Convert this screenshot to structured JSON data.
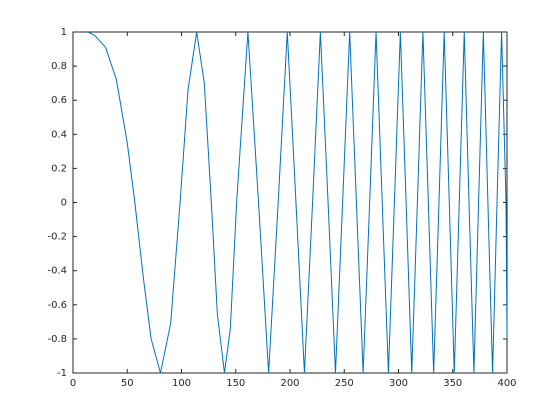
{
  "chart_data": {
    "type": "line",
    "x": [
      14,
      20,
      30,
      40,
      50,
      57,
      65,
      72,
      80.6,
      90,
      98.7,
      106,
      114,
      121,
      127.5,
      133,
      139.6,
      145,
      150.8,
      161.2,
      171,
      180.3,
      189.1,
      197.5,
      205.5,
      213.3,
      220.8,
      228,
      235.1,
      241.9,
      248.5,
      255,
      261.2,
      267.4,
      273.4,
      279.3,
      285,
      290.7,
      296.2,
      301.7,
      307,
      312.2,
      317.4,
      322.5,
      327.5,
      332.4,
      337.3,
      342.1,
      346.8,
      351.4,
      356,
      360.6,
      365,
      369.5,
      373.8,
      378.2,
      382.4,
      386.7,
      390.8,
      395,
      399.1,
      400
    ],
    "values": [
      1,
      0.98,
      0.91,
      0.72,
      0.35,
      0,
      -0.45,
      -0.8,
      -1,
      -0.71,
      0,
      0.66,
      1,
      0.7,
      0,
      -0.65,
      -1,
      -0.74,
      0,
      1,
      0,
      -1,
      0,
      1,
      0,
      -1,
      0,
      1,
      0,
      -1,
      0,
      1,
      0,
      -1,
      0,
      1,
      0,
      -1,
      0,
      1,
      0,
      -1,
      0,
      1,
      0,
      -1,
      0,
      1,
      0,
      -1,
      0,
      1,
      0,
      -1,
      0,
      1,
      0,
      -1,
      0,
      1,
      0,
      -0.8
    ],
    "color": "#0072bd",
    "xlim": [
      0,
      400
    ],
    "xticks": [
      0,
      50,
      100,
      150,
      200,
      250,
      300,
      350,
      400
    ],
    "ylim": [
      -1,
      1
    ],
    "yticks": [
      -1,
      -0.8,
      -0.6,
      -0.4,
      -0.2,
      0,
      0.2,
      0.4,
      0.6,
      0.8,
      1
    ]
  }
}
